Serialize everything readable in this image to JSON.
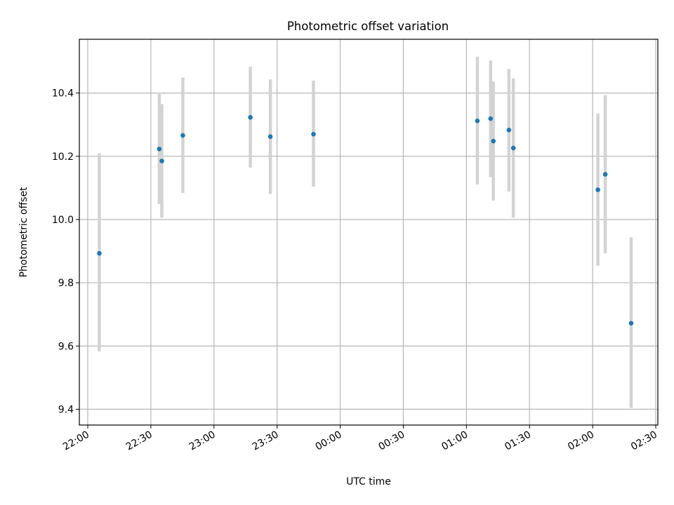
{
  "chart_data": {
    "type": "scatter",
    "title": "Photometric offset variation",
    "xlabel": "UTC time",
    "ylabel": "Photometric offset",
    "x_axis_type": "time",
    "xlim": [
      "21:56",
      "02:31"
    ],
    "ylim": [
      9.35,
      10.57
    ],
    "x_ticks": [
      "22:00",
      "22:30",
      "23:00",
      "23:30",
      "00:00",
      "00:30",
      "01:00",
      "01:30",
      "02:00",
      "02:30"
    ],
    "y_ticks": [
      "9.4",
      "9.6",
      "9.8",
      "10.0",
      "10.2",
      "10.4"
    ],
    "grid": true,
    "legend": "none",
    "point_color": "#1f77b4",
    "errorbar_color": "#d3d3d3",
    "points": [
      {
        "x": "22:05.5",
        "y": 9.893,
        "y_low": 9.583,
        "y_high": 10.209
      },
      {
        "x": "22:34.0",
        "y": 10.223,
        "y_low": 10.049,
        "y_high": 10.397
      },
      {
        "x": "22:35.2",
        "y": 10.185,
        "y_low": 10.006,
        "y_high": 10.365
      },
      {
        "x": "22:45.2",
        "y": 10.266,
        "y_low": 10.084,
        "y_high": 10.449
      },
      {
        "x": "23:17.3",
        "y": 10.323,
        "y_low": 10.164,
        "y_high": 10.483
      },
      {
        "x": "23:26.8",
        "y": 10.262,
        "y_low": 10.081,
        "y_high": 10.443
      },
      {
        "x": "23:47.3",
        "y": 10.27,
        "y_low": 10.104,
        "y_high": 10.439
      },
      {
        "x": "01:05.2",
        "y": 10.312,
        "y_low": 10.111,
        "y_high": 10.515
      },
      {
        "x": "01:11.5",
        "y": 10.319,
        "y_low": 10.134,
        "y_high": 10.503
      },
      {
        "x": "01:12.8",
        "y": 10.248,
        "y_low": 10.06,
        "y_high": 10.436
      },
      {
        "x": "01:20.2",
        "y": 10.283,
        "y_low": 10.088,
        "y_high": 10.476
      },
      {
        "x": "01:22.3",
        "y": 10.226,
        "y_low": 10.006,
        "y_high": 10.446
      },
      {
        "x": "02:02.5",
        "y": 10.094,
        "y_low": 9.854,
        "y_high": 10.335
      },
      {
        "x": "02:06.0",
        "y": 10.143,
        "y_low": 9.893,
        "y_high": 10.393
      },
      {
        "x": "02:18.3",
        "y": 9.672,
        "y_low": 9.404,
        "y_high": 9.944
      }
    ]
  }
}
